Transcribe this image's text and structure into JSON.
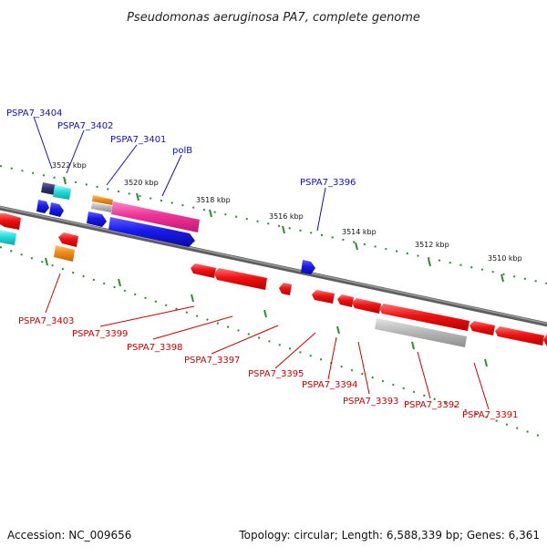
{
  "title": "Pseudomonas aeruginosa PA7, complete genome",
  "footer": {
    "accession": "Accession: NC_009656",
    "summary": "Topology: circular; Length: 6,588,339 bp; Genes: 6,361"
  },
  "colors": {
    "forward_label": "#1010c0",
    "reverse_label": "#cc0000",
    "backbone": "#777777",
    "tick_dots": "#2e8b2e",
    "gene_red": "#ee1111",
    "gene_blue": "#1a1aee",
    "gene_pink": "#ee3399",
    "gene_cyan": "#22dddd",
    "gene_navy": "#33336e",
    "gene_orange": "#f08a1a",
    "gene_gray": "#b8b8b8"
  },
  "scale_labels": [
    "3522 kbp",
    "3520 kbp",
    "3518 kbp",
    "3516 kbp",
    "3514 kbp",
    "3512 kbp",
    "3510 kbp"
  ],
  "gene_labels": {
    "forward": [
      "PSPA7_3404",
      "PSPA7_3402",
      "PSPA7_3401",
      "polB",
      "PSPA7_3396"
    ],
    "reverse": [
      "PSPA7_3403",
      "PSPA7_3399",
      "PSPA7_3398",
      "PSPA7_3397",
      "PSPA7_3395",
      "PSPA7_3394",
      "PSPA7_3393",
      "PSPA7_3392",
      "PSPA7_3391"
    ]
  }
}
